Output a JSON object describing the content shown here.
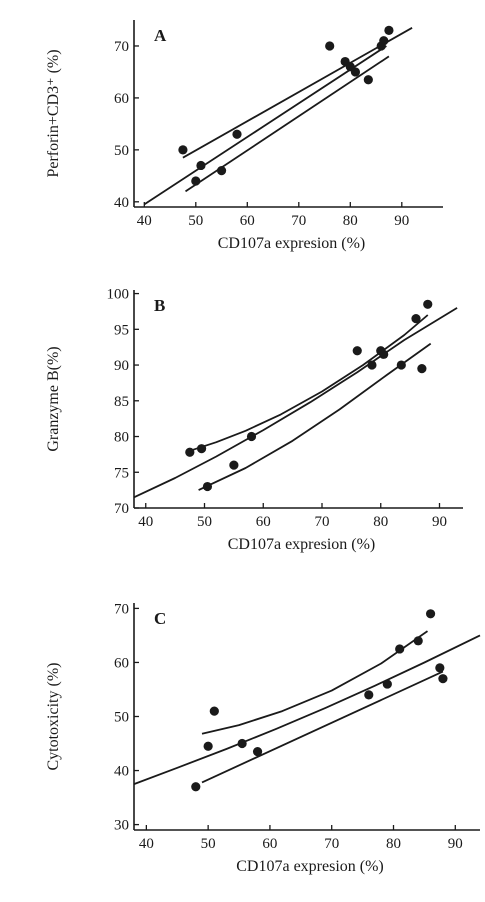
{
  "colors": {
    "ink": "#1a1a1a",
    "background": "#ffffff"
  },
  "chart_data": [
    {
      "type": "scatter",
      "panel_label": "A",
      "xlabel": "CD107a expresion (%)",
      "ylabel": "Perforin+CD3⁺ (%)",
      "xlim": [
        38,
        98
      ],
      "ylim": [
        39,
        75
      ],
      "xticks": [
        40,
        50,
        60,
        70,
        80,
        90
      ],
      "yticks": [
        40,
        50,
        60,
        70
      ],
      "grid": false,
      "series": [
        {
          "points": [
            {
              "x": 47.5,
              "y": 50
            },
            {
              "x": 50,
              "y": 44
            },
            {
              "x": 51,
              "y": 47
            },
            {
              "x": 55,
              "y": 46
            },
            {
              "x": 58,
              "y": 53
            },
            {
              "x": 76,
              "y": 70
            },
            {
              "x": 79,
              "y": 67
            },
            {
              "x": 80,
              "y": 66
            },
            {
              "x": 81,
              "y": 65
            },
            {
              "x": 83.5,
              "y": 63.5
            },
            {
              "x": 86,
              "y": 70
            },
            {
              "x": 86.5,
              "y": 71
            },
            {
              "x": 87.5,
              "y": 73
            }
          ]
        }
      ],
      "fit_lines": [
        {
          "role": "upper",
          "x": [
            47.5,
            92
          ],
          "y": [
            48.5,
            73.5
          ]
        },
        {
          "role": "fit",
          "x": [
            40,
            87
          ],
          "y": [
            39.5,
            70
          ]
        },
        {
          "role": "lower",
          "x": [
            48,
            87.5
          ],
          "y": [
            42,
            68
          ]
        }
      ]
    },
    {
      "type": "scatter",
      "panel_label": "B",
      "xlabel": "CD107a expresion (%)",
      "ylabel": "Granzyme B(%)",
      "xlim": [
        38,
        94
      ],
      "ylim": [
        70,
        100.5
      ],
      "xticks": [
        40,
        50,
        60,
        70,
        80,
        90
      ],
      "yticks": [
        70,
        75,
        80,
        85,
        90,
        95,
        100
      ],
      "grid": false,
      "series": [
        {
          "points": [
            {
              "x": 47.5,
              "y": 77.8
            },
            {
              "x": 49.5,
              "y": 78.3
            },
            {
              "x": 50.5,
              "y": 73
            },
            {
              "x": 55,
              "y": 76
            },
            {
              "x": 58,
              "y": 80
            },
            {
              "x": 76,
              "y": 92
            },
            {
              "x": 78.5,
              "y": 90
            },
            {
              "x": 80,
              "y": 92
            },
            {
              "x": 80.5,
              "y": 91.5
            },
            {
              "x": 83.5,
              "y": 90
            },
            {
              "x": 86,
              "y": 96.5
            },
            {
              "x": 87,
              "y": 89.5
            },
            {
              "x": 88,
              "y": 98.5
            }
          ]
        }
      ],
      "fit_lines": [
        {
          "role": "upper",
          "x": [
            47.5,
            52,
            57,
            63,
            70,
            77,
            84,
            88
          ],
          "y": [
            78,
            79.2,
            80.8,
            83.1,
            86.3,
            90,
            94.2,
            97
          ]
        },
        {
          "role": "fit",
          "x": [
            38,
            45,
            52,
            60,
            68,
            76,
            84,
            93
          ],
          "y": [
            71.5,
            74.2,
            77.2,
            80.9,
            84.8,
            89,
            93.5,
            98
          ]
        },
        {
          "role": "lower",
          "x": [
            49,
            57,
            65,
            73,
            81,
            88.5
          ],
          "y": [
            72.5,
            75.6,
            79.4,
            83.8,
            88.6,
            93
          ]
        }
      ]
    },
    {
      "type": "scatter",
      "panel_label": "C",
      "xlabel": "CD107a expresion (%)",
      "ylabel": "Cytotoxicity  (%)",
      "xlim": [
        38,
        94
      ],
      "ylim": [
        29,
        71
      ],
      "xticks": [
        40,
        50,
        60,
        70,
        80,
        90
      ],
      "yticks": [
        30,
        40,
        50,
        60,
        70
      ],
      "grid": false,
      "series": [
        {
          "points": [
            {
              "x": 48,
              "y": 37
            },
            {
              "x": 50,
              "y": 44.5
            },
            {
              "x": 51,
              "y": 51
            },
            {
              "x": 55.5,
              "y": 45
            },
            {
              "x": 58,
              "y": 43.5
            },
            {
              "x": 76,
              "y": 54
            },
            {
              "x": 79,
              "y": 56
            },
            {
              "x": 81,
              "y": 62.5
            },
            {
              "x": 84,
              "y": 64
            },
            {
              "x": 86,
              "y": 69
            },
            {
              "x": 87.5,
              "y": 59
            },
            {
              "x": 88,
              "y": 57
            }
          ]
        }
      ],
      "fit_lines": [
        {
          "role": "upper",
          "x": [
            49,
            55,
            62,
            70,
            78,
            85.5
          ],
          "y": [
            46.8,
            48.4,
            51,
            54.8,
            59.8,
            65.8
          ]
        },
        {
          "role": "fit",
          "x": [
            38,
            45,
            53,
            61,
            69,
            77,
            85,
            94
          ],
          "y": [
            37.5,
            40.5,
            44,
            47.7,
            51.6,
            55.7,
            60,
            65
          ]
        },
        {
          "role": "lower",
          "x": [
            49,
            88
          ],
          "y": [
            37.8,
            58.3
          ]
        }
      ]
    }
  ]
}
